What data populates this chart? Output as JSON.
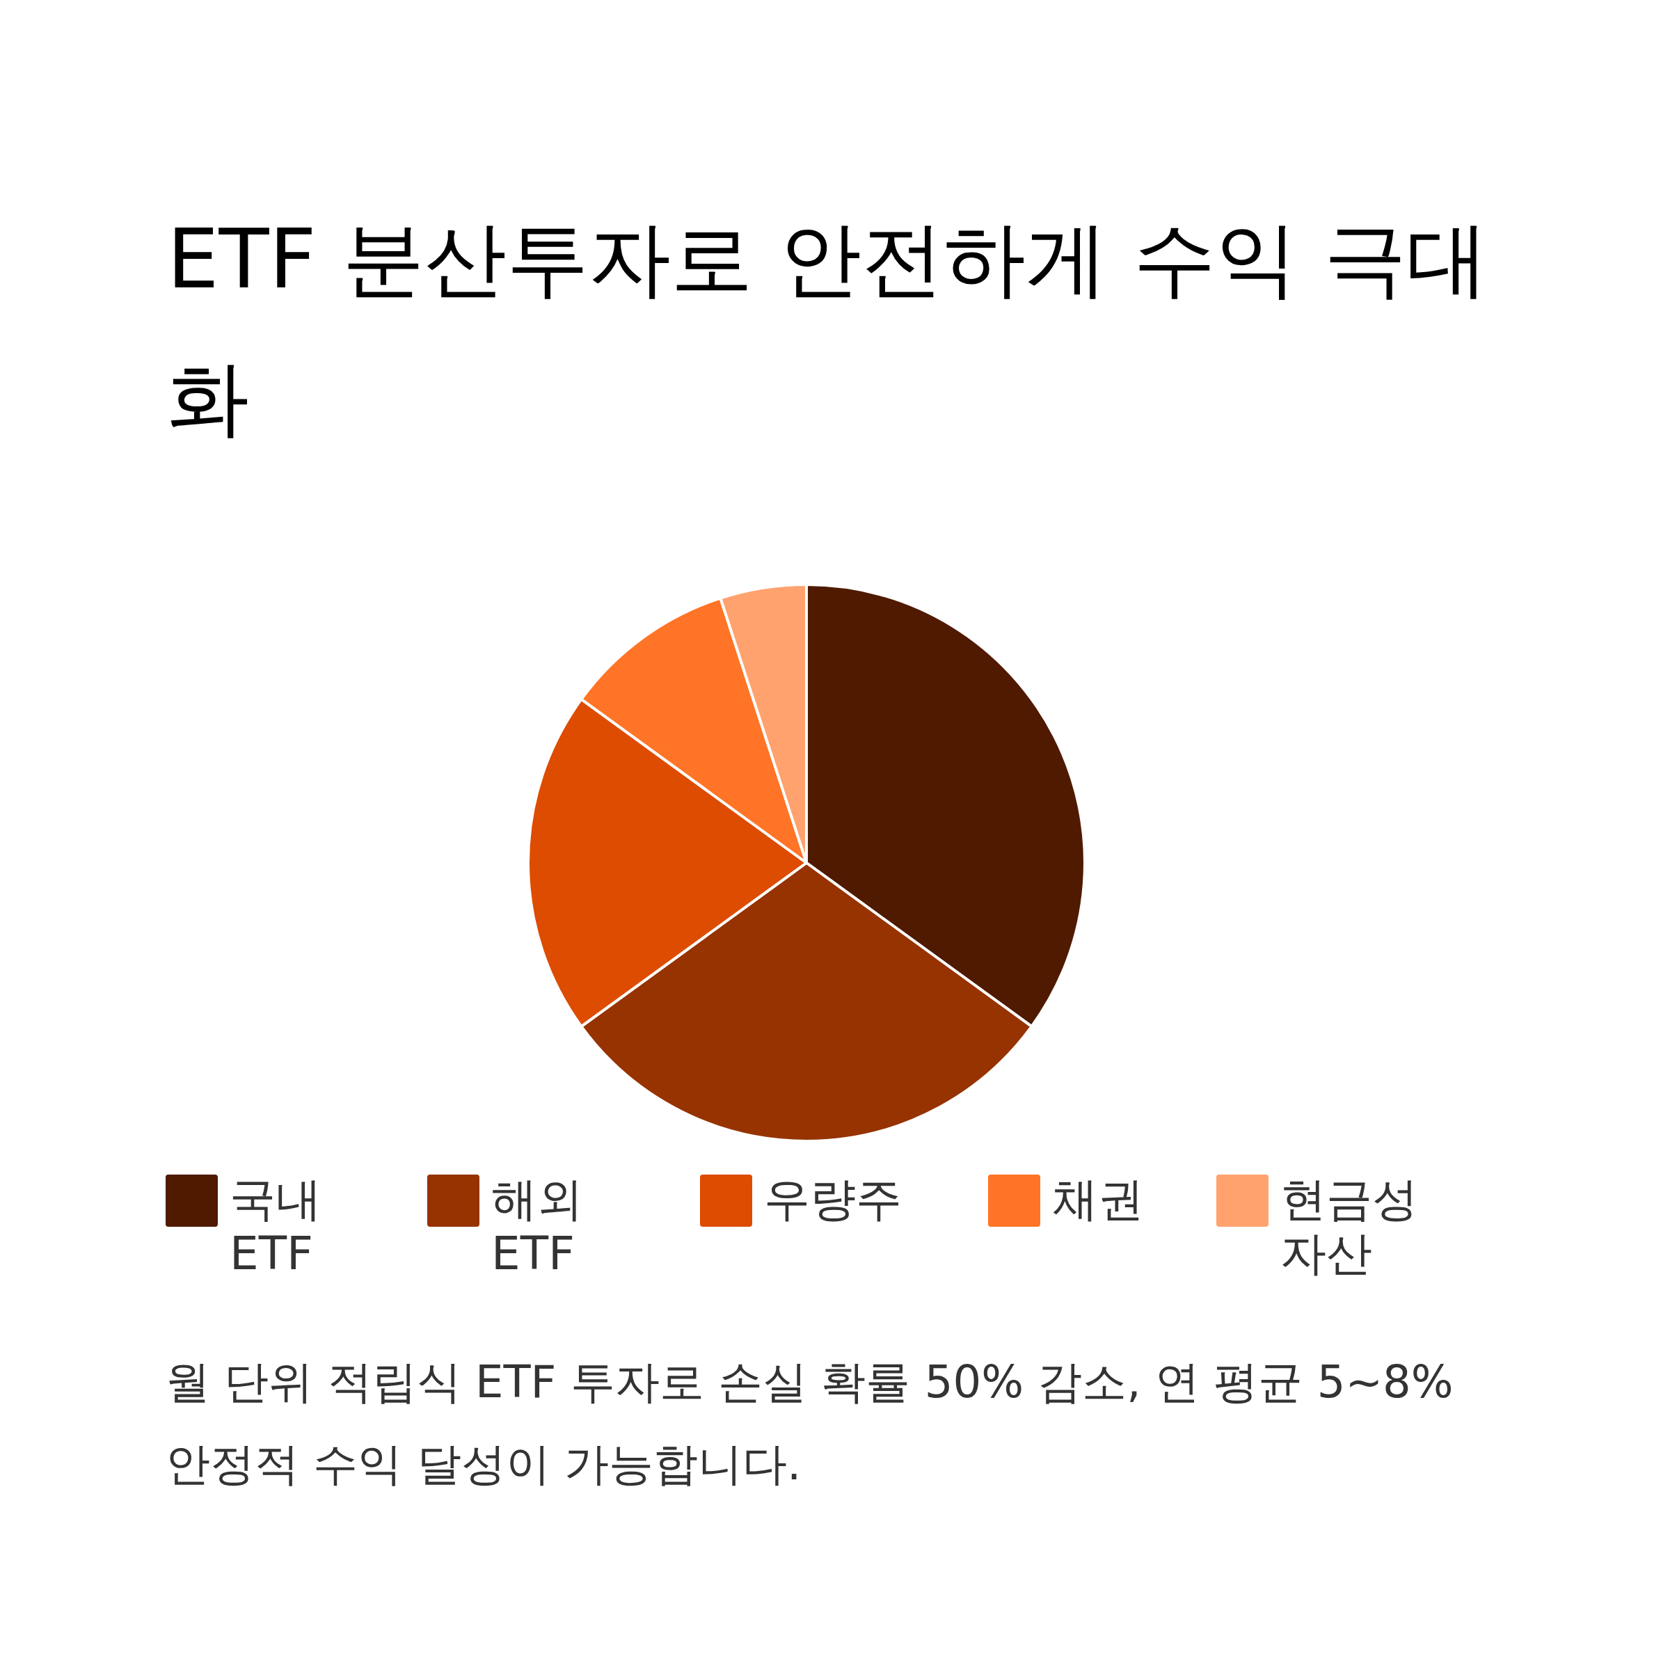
{
  "chart_data": {
    "type": "pie",
    "title": "ETF 분산투자로 안전하게 수익 극대화",
    "categories": [
      "국내 ETF",
      "해외 ETF",
      "우량주",
      "채권",
      "현금성 자산"
    ],
    "values": [
      35,
      30,
      20,
      10,
      5
    ],
    "colors": [
      "#4f1a00",
      "#963300",
      "#dd4c00",
      "#ff7426",
      "#ffa26e"
    ],
    "legend": "bottom",
    "annotations": [
      "월 단위 적립식 ETF 투자로 손실 확률 50% 감소, 연 평균 5~8% 안정적 수익 달성이 가능합니다."
    ]
  }
}
